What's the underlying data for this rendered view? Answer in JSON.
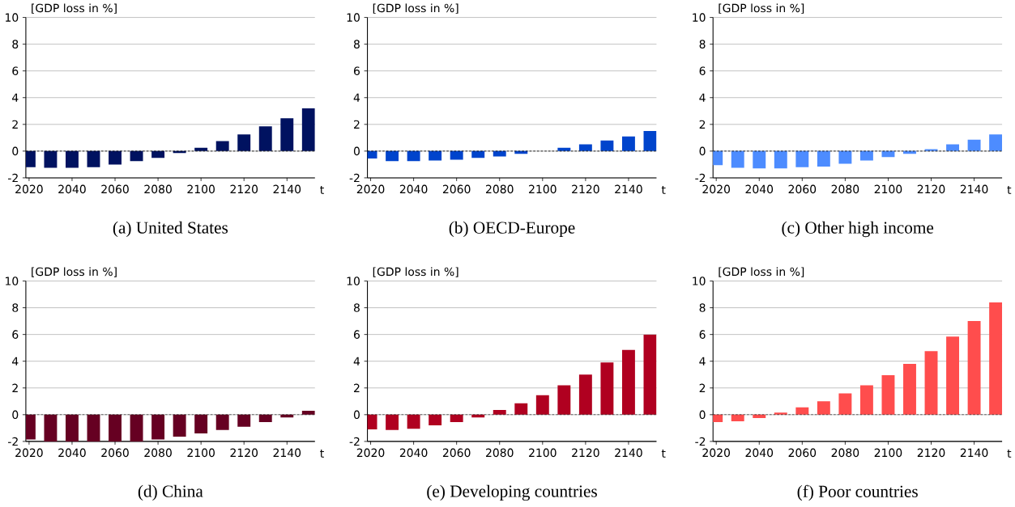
{
  "chart_data": [
    {
      "type": "bar",
      "title": "(a) United States",
      "ylabel": "[GDP loss in %]",
      "xlabel": "t",
      "x": [
        2020,
        2030,
        2040,
        2050,
        2060,
        2070,
        2080,
        2090,
        2100,
        2110,
        2120,
        2130,
        2140,
        2150
      ],
      "values": [
        -1.2,
        -1.25,
        -1.25,
        -1.2,
        -1.0,
        -0.75,
        -0.5,
        -0.15,
        0.25,
        0.75,
        1.25,
        1.85,
        2.45,
        3.2
      ],
      "color": "#001260",
      "xlim": [
        2018.5,
        2153
      ],
      "xticks": [
        2020,
        2040,
        2060,
        2080,
        2100,
        2120,
        2140
      ],
      "ylim": [
        -2,
        10
      ],
      "yticks": [
        -2,
        0,
        2,
        4,
        6,
        8,
        10
      ],
      "grid": "y",
      "ref_lines": [
        {
          "axis": "y",
          "value": 0,
          "line_style": "dashed",
          "color": "#000000"
        }
      ]
    },
    {
      "type": "bar",
      "title": "(b) OECD-Europe",
      "ylabel": "[GDP loss in %]",
      "xlabel": "t",
      "x": [
        2020,
        2030,
        2040,
        2050,
        2060,
        2070,
        2080,
        2090,
        2100,
        2110,
        2120,
        2130,
        2140,
        2150
      ],
      "values": [
        -0.55,
        -0.75,
        -0.75,
        -0.7,
        -0.65,
        -0.5,
        -0.4,
        -0.2,
        0,
        0.25,
        0.5,
        0.8,
        1.1,
        1.5
      ],
      "color": "#0044cc",
      "xlim": [
        2018.5,
        2153
      ],
      "xticks": [
        2020,
        2040,
        2060,
        2080,
        2100,
        2120,
        2140
      ],
      "ylim": [
        -2,
        10
      ],
      "yticks": [
        -2,
        0,
        2,
        4,
        6,
        8,
        10
      ],
      "grid": "y",
      "ref_lines": [
        {
          "axis": "y",
          "value": 0,
          "line_style": "dashed",
          "color": "#000000"
        }
      ]
    },
    {
      "type": "bar",
      "title": "(c) Other high income",
      "ylabel": "[GDP loss in %]",
      "xlabel": "t",
      "x": [
        2020,
        2030,
        2040,
        2050,
        2060,
        2070,
        2080,
        2090,
        2100,
        2110,
        2120,
        2130,
        2140,
        2150
      ],
      "values": [
        -1.05,
        -1.25,
        -1.3,
        -1.3,
        -1.2,
        -1.15,
        -0.95,
        -0.7,
        -0.45,
        -0.2,
        0.15,
        0.5,
        0.85,
        1.25
      ],
      "color": "#4d8cff",
      "xlim": [
        2018.5,
        2153
      ],
      "xticks": [
        2020,
        2040,
        2060,
        2080,
        2100,
        2120,
        2140
      ],
      "ylim": [
        -2,
        10
      ],
      "yticks": [
        -2,
        0,
        2,
        4,
        6,
        8,
        10
      ],
      "grid": "y",
      "ref_lines": [
        {
          "axis": "y",
          "value": 0,
          "line_style": "dashed",
          "color": "#000000"
        }
      ]
    },
    {
      "type": "bar",
      "title": "(d) China",
      "ylabel": "[GDP loss in %]",
      "xlabel": "t",
      "x": [
        2020,
        2030,
        2040,
        2050,
        2060,
        2070,
        2080,
        2090,
        2100,
        2110,
        2120,
        2130,
        2140,
        2150
      ],
      "values": [
        -1.85,
        -2,
        -2,
        -2,
        -2,
        -2,
        -1.85,
        -1.65,
        -1.4,
        -1.15,
        -0.9,
        -0.55,
        -0.2,
        0.3
      ],
      "color": "#660022",
      "xlim": [
        2018.5,
        2153
      ],
      "xticks": [
        2020,
        2040,
        2060,
        2080,
        2100,
        2120,
        2140
      ],
      "ylim": [
        -2,
        10
      ],
      "yticks": [
        -2,
        0,
        2,
        4,
        6,
        8,
        10
      ],
      "grid": "y",
      "ref_lines": [
        {
          "axis": "y",
          "value": 0,
          "line_style": "dashed",
          "color": "#000000"
        }
      ]
    },
    {
      "type": "bar",
      "title": "(e) Developing countries",
      "ylabel": "[GDP loss in %]",
      "xlabel": "t",
      "x": [
        2020,
        2030,
        2040,
        2050,
        2060,
        2070,
        2080,
        2090,
        2100,
        2110,
        2120,
        2130,
        2140,
        2150
      ],
      "values": [
        -1.1,
        -1.15,
        -1.05,
        -0.8,
        -0.55,
        -0.2,
        0.35,
        0.85,
        1.45,
        2.2,
        3.0,
        3.9,
        4.85,
        6.0
      ],
      "color": "#b00020",
      "xlim": [
        2018.5,
        2153
      ],
      "xticks": [
        2020,
        2040,
        2060,
        2080,
        2100,
        2120,
        2140
      ],
      "ylim": [
        -2,
        10
      ],
      "yticks": [
        -2,
        0,
        2,
        4,
        6,
        8,
        10
      ],
      "grid": "y",
      "ref_lines": [
        {
          "axis": "y",
          "value": 0,
          "line_style": "dashed",
          "color": "#000000"
        }
      ]
    },
    {
      "type": "bar",
      "title": "(f) Poor countries",
      "ylabel": "[GDP loss in %]",
      "xlabel": "t",
      "x": [
        2020,
        2030,
        2040,
        2050,
        2060,
        2070,
        2080,
        2090,
        2100,
        2110,
        2120,
        2130,
        2140,
        2150
      ],
      "values": [
        -0.55,
        -0.5,
        -0.25,
        0.15,
        0.55,
        1.0,
        1.6,
        2.2,
        2.95,
        3.8,
        4.75,
        5.85,
        7.0,
        8.4
      ],
      "color": "#ff4d4d",
      "xlim": [
        2018.5,
        2153
      ],
      "xticks": [
        2020,
        2040,
        2060,
        2080,
        2100,
        2120,
        2140
      ],
      "ylim": [
        -2,
        10
      ],
      "yticks": [
        -2,
        0,
        2,
        4,
        6,
        8,
        10
      ],
      "grid": "y",
      "ref_lines": [
        {
          "axis": "y",
          "value": 0,
          "line_style": "dashed",
          "color": "#000000"
        }
      ]
    }
  ]
}
